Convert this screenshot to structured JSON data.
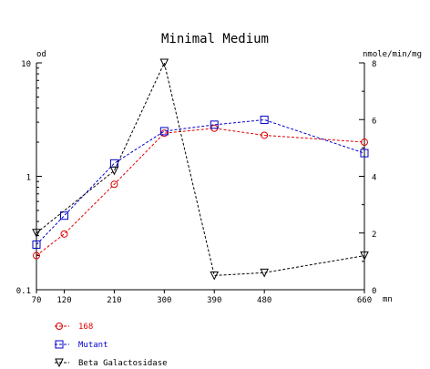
{
  "chart_data": {
    "type": "line",
    "title": "Minimal Medium",
    "xlabel": "mn",
    "ylabel_left": "od",
    "ylabel_right": "nmole/min/mg",
    "x": [
      70,
      120,
      210,
      300,
      390,
      480,
      660
    ],
    "x_ticks": [
      "70",
      "120",
      "210",
      "300",
      "390",
      "480",
      "660"
    ],
    "xlim": [
      70,
      660
    ],
    "y_left": {
      "scale": "log",
      "lim": [
        0.1,
        10
      ],
      "ticks": [
        "0.1",
        "1",
        "10"
      ]
    },
    "y_right": {
      "scale": "linear",
      "lim": [
        0,
        8
      ],
      "ticks": [
        "0",
        "2",
        "4",
        "6",
        "8"
      ]
    },
    "grid": false,
    "legend_position": "bottom-left",
    "series": [
      {
        "name": "168",
        "axis": "left",
        "marker": "circle",
        "color": "#e00000",
        "values": [
          0.2,
          0.31,
          0.85,
          2.4,
          2.65,
          2.3,
          2.0
        ]
      },
      {
        "name": "Mutant",
        "axis": "left",
        "marker": "square",
        "color": "#0000cc",
        "values": [
          0.25,
          0.45,
          1.3,
          2.5,
          2.85,
          3.15,
          1.6
        ]
      },
      {
        "name": "Beta Galactosidase",
        "axis": "right",
        "marker": "triangle-down",
        "color": "#000000",
        "values": [
          2.0,
          null,
          4.2,
          8.0,
          0.5,
          0.6,
          1.2
        ]
      }
    ]
  }
}
